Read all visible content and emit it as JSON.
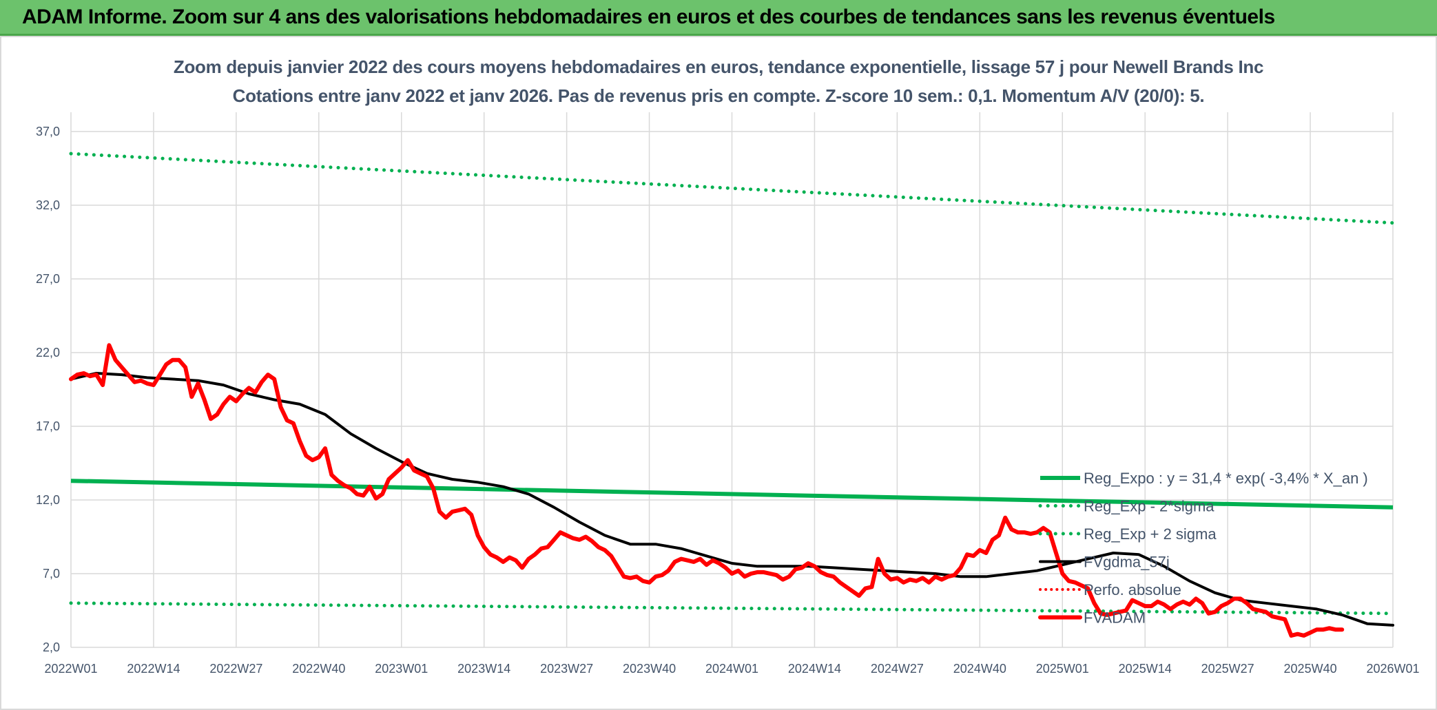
{
  "banner": {
    "title": "ADAM Informe. Zoom sur 4 ans des valorisations hebdomadaires en euros et des courbes de tendances sans les revenus éventuels"
  },
  "chart_data": {
    "type": "line",
    "title": "Zoom depuis janvier 2022 des cours moyens hebdomadaires en euros, tendance exponentielle, lissage 57 j pour Newell Brands Inc",
    "subtitle": "Cotations entre janv 2022 et janv 2026. Pas de revenus pris en compte. Z-score 10 sem.: 0,1. Momentum A/V (20/0): 5.",
    "xlabel": "",
    "ylabel": "",
    "x_ticks": [
      "2022W01",
      "2022W14",
      "2022W27",
      "2022W40",
      "2023W01",
      "2023W14",
      "2023W27",
      "2023W40",
      "2024W01",
      "2024W14",
      "2024W27",
      "2024W40",
      "2025W01",
      "2025W14",
      "2025W27",
      "2025W40",
      "2026W01"
    ],
    "y_ticks": [
      "2,0",
      "7,0",
      "12,0",
      "17,0",
      "22,0",
      "27,0",
      "32,0",
      "37,0"
    ],
    "ylim": [
      2,
      38
    ],
    "grid": true,
    "legend_position": "bottom-right",
    "colors": {
      "reg": "#00b050",
      "smooth": "#000000",
      "fvadam": "#ff0000",
      "perfo": "#ff0000"
    },
    "series": [
      {
        "name": "Reg_Expo : y = 31,4 * exp( -3,4% *  X_an )",
        "style": "solid-green",
        "points": [
          [
            0,
            13.3
          ],
          [
            208,
            11.5
          ]
        ]
      },
      {
        "name": "Reg_Exp - 2*sigma",
        "style": "dotted-green",
        "points": [
          [
            0,
            5.0
          ],
          [
            208,
            4.3
          ]
        ]
      },
      {
        "name": "Reg_Exp + 2 sigma",
        "style": "dotted-green",
        "points": [
          [
            0,
            35.5
          ],
          [
            208,
            30.8
          ]
        ]
      },
      {
        "name": "FVgdma_57j",
        "style": "solid-black",
        "points": [
          [
            0,
            20.2
          ],
          [
            4,
            20.6
          ],
          [
            8,
            20.5
          ],
          [
            12,
            20.3
          ],
          [
            16,
            20.2
          ],
          [
            20,
            20.1
          ],
          [
            24,
            19.8
          ],
          [
            28,
            19.2
          ],
          [
            32,
            18.8
          ],
          [
            36,
            18.5
          ],
          [
            40,
            17.8
          ],
          [
            44,
            16.5
          ],
          [
            48,
            15.5
          ],
          [
            52,
            14.6
          ],
          [
            56,
            13.8
          ],
          [
            60,
            13.4
          ],
          [
            64,
            13.2
          ],
          [
            68,
            12.9
          ],
          [
            72,
            12.4
          ],
          [
            76,
            11.5
          ],
          [
            80,
            10.5
          ],
          [
            84,
            9.6
          ],
          [
            88,
            9.0
          ],
          [
            92,
            9.0
          ],
          [
            96,
            8.7
          ],
          [
            100,
            8.2
          ],
          [
            104,
            7.7
          ],
          [
            108,
            7.5
          ],
          [
            112,
            7.5
          ],
          [
            116,
            7.5
          ],
          [
            120,
            7.4
          ],
          [
            124,
            7.3
          ],
          [
            128,
            7.2
          ],
          [
            132,
            7.1
          ],
          [
            136,
            7.0
          ],
          [
            140,
            6.8
          ],
          [
            144,
            6.8
          ],
          [
            148,
            7.0
          ],
          [
            152,
            7.2
          ],
          [
            156,
            7.6
          ],
          [
            160,
            8.0
          ],
          [
            164,
            8.4
          ],
          [
            168,
            8.3
          ],
          [
            172,
            7.5
          ],
          [
            176,
            6.5
          ],
          [
            180,
            5.7
          ],
          [
            184,
            5.2
          ],
          [
            188,
            5.0
          ],
          [
            192,
            4.8
          ],
          [
            196,
            4.6
          ],
          [
            200,
            4.2
          ],
          [
            204,
            3.6
          ],
          [
            208,
            3.5
          ]
        ]
      },
      {
        "name": "Perfo. absolue",
        "style": "dotted-red",
        "points": []
      },
      {
        "name": "FVADAM",
        "style": "solid-red",
        "points": [
          [
            0,
            20.2
          ],
          [
            1,
            20.5
          ],
          [
            2,
            20.6
          ],
          [
            3,
            20.4
          ],
          [
            4,
            20.5
          ],
          [
            5,
            19.8
          ],
          [
            6,
            22.5
          ],
          [
            7,
            21.5
          ],
          [
            8,
            21.0
          ],
          [
            9,
            20.5
          ],
          [
            10,
            20.0
          ],
          [
            11,
            20.1
          ],
          [
            12,
            19.9
          ],
          [
            13,
            19.8
          ],
          [
            14,
            20.5
          ],
          [
            15,
            21.2
          ],
          [
            16,
            21.5
          ],
          [
            17,
            21.5
          ],
          [
            18,
            21.0
          ],
          [
            19,
            19.0
          ],
          [
            20,
            19.9
          ],
          [
            21,
            18.8
          ],
          [
            22,
            17.5
          ],
          [
            23,
            17.8
          ],
          [
            24,
            18.5
          ],
          [
            25,
            19.0
          ],
          [
            26,
            18.7
          ],
          [
            27,
            19.2
          ],
          [
            28,
            19.6
          ],
          [
            29,
            19.3
          ],
          [
            30,
            20.0
          ],
          [
            31,
            20.5
          ],
          [
            32,
            20.2
          ],
          [
            33,
            18.3
          ],
          [
            34,
            17.4
          ],
          [
            35,
            17.2
          ],
          [
            36,
            16.0
          ],
          [
            37,
            15.0
          ],
          [
            38,
            14.7
          ],
          [
            39,
            14.9
          ],
          [
            40,
            15.5
          ],
          [
            41,
            13.7
          ],
          [
            42,
            13.3
          ],
          [
            43,
            13.0
          ],
          [
            44,
            12.8
          ],
          [
            45,
            12.4
          ],
          [
            46,
            12.3
          ],
          [
            47,
            12.9
          ],
          [
            48,
            12.1
          ],
          [
            49,
            12.4
          ],
          [
            50,
            13.4
          ],
          [
            51,
            13.8
          ],
          [
            52,
            14.2
          ],
          [
            53,
            14.7
          ],
          [
            54,
            14.0
          ],
          [
            55,
            13.8
          ],
          [
            56,
            13.6
          ],
          [
            57,
            12.8
          ],
          [
            58,
            11.2
          ],
          [
            59,
            10.8
          ],
          [
            60,
            11.2
          ],
          [
            61,
            11.3
          ],
          [
            62,
            11.4
          ],
          [
            63,
            11.0
          ],
          [
            64,
            9.6
          ],
          [
            65,
            8.8
          ],
          [
            66,
            8.3
          ],
          [
            67,
            8.1
          ],
          [
            68,
            7.8
          ],
          [
            69,
            8.1
          ],
          [
            70,
            7.9
          ],
          [
            71,
            7.4
          ],
          [
            72,
            8.0
          ],
          [
            73,
            8.3
          ],
          [
            74,
            8.7
          ],
          [
            75,
            8.8
          ],
          [
            76,
            9.3
          ],
          [
            77,
            9.8
          ],
          [
            78,
            9.6
          ],
          [
            79,
            9.4
          ],
          [
            80,
            9.3
          ],
          [
            81,
            9.5
          ],
          [
            82,
            9.2
          ],
          [
            83,
            8.8
          ],
          [
            84,
            8.6
          ],
          [
            85,
            8.2
          ],
          [
            86,
            7.5
          ],
          [
            87,
            6.8
          ],
          [
            88,
            6.7
          ],
          [
            89,
            6.8
          ],
          [
            90,
            6.5
          ],
          [
            91,
            6.4
          ],
          [
            92,
            6.8
          ],
          [
            93,
            6.9
          ],
          [
            94,
            7.2
          ],
          [
            95,
            7.8
          ],
          [
            96,
            8.0
          ],
          [
            97,
            7.9
          ],
          [
            98,
            7.8
          ],
          [
            99,
            8.0
          ],
          [
            100,
            7.6
          ],
          [
            101,
            7.9
          ],
          [
            102,
            7.7
          ],
          [
            103,
            7.4
          ],
          [
            104,
            7.0
          ],
          [
            105,
            7.2
          ],
          [
            106,
            6.8
          ],
          [
            107,
            7.0
          ],
          [
            108,
            7.1
          ],
          [
            109,
            7.1
          ],
          [
            110,
            7.0
          ],
          [
            111,
            6.9
          ],
          [
            112,
            6.6
          ],
          [
            113,
            6.8
          ],
          [
            114,
            7.3
          ],
          [
            115,
            7.4
          ],
          [
            116,
            7.7
          ],
          [
            117,
            7.5
          ],
          [
            118,
            7.1
          ],
          [
            119,
            6.9
          ],
          [
            120,
            6.8
          ],
          [
            121,
            6.4
          ],
          [
            122,
            6.1
          ],
          [
            123,
            5.8
          ],
          [
            124,
            5.5
          ],
          [
            125,
            6.0
          ],
          [
            126,
            6.1
          ],
          [
            127,
            8.0
          ],
          [
            128,
            7.0
          ],
          [
            129,
            6.6
          ],
          [
            130,
            6.7
          ],
          [
            131,
            6.4
          ],
          [
            132,
            6.6
          ],
          [
            133,
            6.5
          ],
          [
            134,
            6.7
          ],
          [
            135,
            6.4
          ],
          [
            136,
            6.8
          ],
          [
            137,
            6.6
          ],
          [
            138,
            6.8
          ],
          [
            139,
            6.9
          ],
          [
            140,
            7.4
          ],
          [
            141,
            8.3
          ],
          [
            142,
            8.2
          ],
          [
            143,
            8.6
          ],
          [
            144,
            8.4
          ],
          [
            145,
            9.3
          ],
          [
            146,
            9.6
          ],
          [
            147,
            10.8
          ],
          [
            148,
            10.0
          ],
          [
            149,
            9.8
          ],
          [
            150,
            9.8
          ],
          [
            151,
            9.7
          ],
          [
            152,
            9.8
          ],
          [
            153,
            10.1
          ],
          [
            154,
            9.8
          ],
          [
            155,
            8.4
          ],
          [
            156,
            7.0
          ],
          [
            157,
            6.5
          ],
          [
            158,
            6.4
          ],
          [
            159,
            6.2
          ],
          [
            160,
            6.0
          ],
          [
            161,
            5.0
          ],
          [
            162,
            4.3
          ],
          [
            163,
            4.2
          ],
          [
            164,
            4.3
          ],
          [
            165,
            4.4
          ],
          [
            166,
            4.5
          ],
          [
            167,
            5.2
          ],
          [
            168,
            5.0
          ],
          [
            169,
            4.8
          ],
          [
            170,
            4.8
          ],
          [
            171,
            5.1
          ],
          [
            172,
            4.9
          ],
          [
            173,
            4.6
          ],
          [
            174,
            4.9
          ],
          [
            175,
            5.1
          ],
          [
            176,
            4.9
          ],
          [
            177,
            5.3
          ],
          [
            178,
            5.0
          ],
          [
            179,
            4.3
          ],
          [
            180,
            4.4
          ],
          [
            181,
            4.8
          ],
          [
            182,
            5.0
          ],
          [
            183,
            5.3
          ],
          [
            184,
            5.3
          ],
          [
            185,
            5.0
          ],
          [
            186,
            4.6
          ],
          [
            187,
            4.5
          ],
          [
            188,
            4.4
          ],
          [
            189,
            4.1
          ],
          [
            190,
            4.0
          ],
          [
            191,
            3.9
          ],
          [
            192,
            2.8
          ],
          [
            193,
            2.9
          ],
          [
            194,
            2.8
          ],
          [
            195,
            3.0
          ],
          [
            196,
            3.2
          ],
          [
            197,
            3.2
          ],
          [
            198,
            3.3
          ],
          [
            199,
            3.2
          ],
          [
            200,
            3.2
          ]
        ]
      }
    ]
  }
}
